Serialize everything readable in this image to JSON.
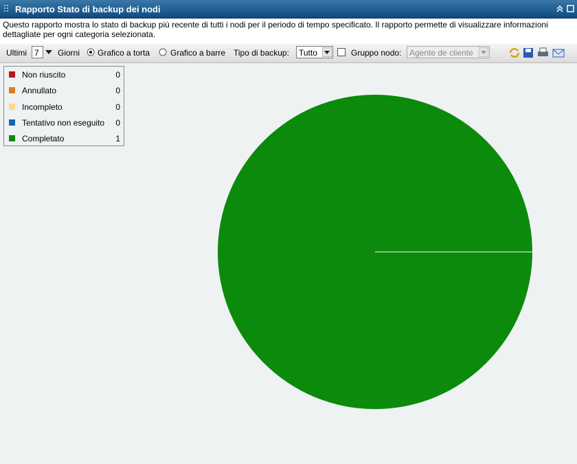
{
  "header": {
    "title": "Rapporto Stato di backup dei nodi"
  },
  "description": "Questo rapporto mostra lo stato di backup più recente di tutti i nodi per il periodo di tempo specificato. Il rapporto permette di visualizzare informazioni dettagliate per ogni categoria selezionata.",
  "toolbar": {
    "last_label": "Ultimi",
    "days_value": "7",
    "days_label": "Giorni",
    "pie_option": "Grafico a torta",
    "bar_option": "Grafico a barre",
    "backup_type_label": "Tipo di backup:",
    "backup_type_value": "Tutto",
    "node_group_label": "Gruppo nodo:",
    "node_group_value": "Agente de cliente"
  },
  "chart_data": {
    "type": "pie",
    "categories": [
      "Non riuscito",
      "Annullato",
      "Incompleto",
      "Tentativo non eseguito",
      "Completato"
    ],
    "values": [
      0,
      0,
      0,
      0,
      1
    ],
    "colors": [
      "#c0121a",
      "#e07b1a",
      "#ffd98a",
      "#1464b4",
      "#0b8a0b"
    ]
  }
}
